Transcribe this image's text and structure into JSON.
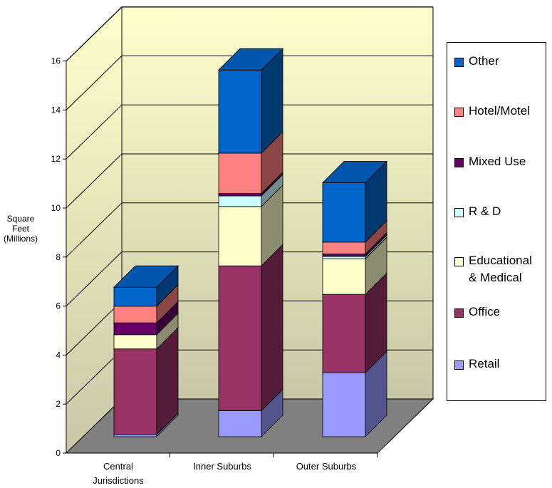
{
  "chart_data": {
    "type": "bar",
    "stacked": true,
    "three_d": true,
    "categories": [
      "Central Jurisdictions",
      "Inner Suburbs",
      "Outer Suburbs"
    ],
    "category_labels": [
      "Central\nJurisdictions",
      "Inner Suburbs",
      "Outer Suburbs"
    ],
    "ylabel_line1": "Square Feet",
    "ylabel_line2": "(Millions)",
    "ylim": [
      0,
      16
    ],
    "yticks": [
      "0",
      "2",
      "4",
      "6",
      "8",
      "10",
      "12",
      "14",
      "16"
    ],
    "grid": true,
    "legend_position": "right",
    "series": [
      {
        "name": "Retail",
        "color": "#9999ff",
        "values": [
          0.1,
          1.1,
          2.7
        ]
      },
      {
        "name": "Office",
        "color": "#993366",
        "values": [
          3.6,
          6.1,
          3.3
        ]
      },
      {
        "name": "Educational\n& Medical",
        "color": "#ffffcc",
        "values": [
          0.6,
          2.5,
          1.5
        ]
      },
      {
        "name": "R & D",
        "color": "#ccffff",
        "values": [
          0.0,
          0.45,
          0.1
        ]
      },
      {
        "name": "Mixed Use",
        "color": "#660066",
        "values": [
          0.5,
          0.1,
          0.1
        ]
      },
      {
        "name": "Hotel/Motel",
        "color": "#ff8080",
        "values": [
          0.7,
          1.7,
          0.5
        ]
      },
      {
        "name": "Other",
        "color": "#0066cc",
        "values": [
          0.8,
          3.5,
          2.5
        ]
      }
    ]
  },
  "legend_order": [
    "Other",
    "Hotel/Motel",
    "Mixed Use",
    "R & D",
    "Educational\n& Medical",
    "Office",
    "Retail"
  ]
}
